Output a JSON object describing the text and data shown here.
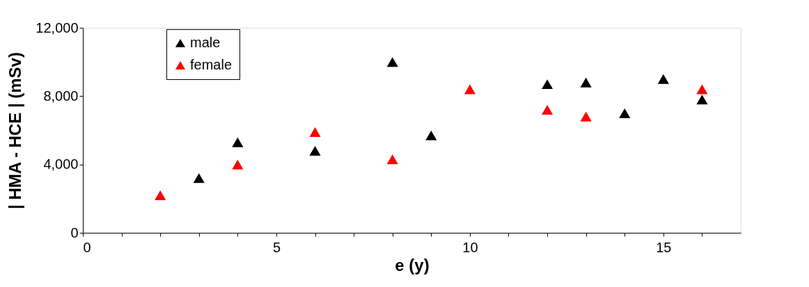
{
  "chart_data": {
    "type": "scatter",
    "xlabel": "e (y)",
    "ylabel": "| HMA - HCE |   (mSv)",
    "xlim": [
      0,
      17
    ],
    "xticks": [
      0,
      {
        "value": 1,
        "label": null
      },
      {
        "value": 2,
        "label": null
      },
      {
        "value": 3,
        "label": null
      },
      {
        "value": 4,
        "label": null
      },
      5,
      {
        "value": 6,
        "label": null
      },
      {
        "value": 7,
        "label": null
      },
      {
        "value": 8,
        "label": null
      },
      {
        "value": 9,
        "label": null
      },
      10,
      {
        "value": 11,
        "label": null
      },
      {
        "value": 12,
        "label": null
      },
      {
        "value": 13,
        "label": null
      },
      {
        "value": 14,
        "label": null
      },
      15,
      {
        "value": 16,
        "label": null
      }
    ],
    "ylim": [
      0,
      12000
    ],
    "yticks": [
      0,
      {
        "value": 4000,
        "label": "4,000"
      },
      {
        "value": 8000,
        "label": "8,000"
      },
      {
        "value": 12000,
        "label": "12,000"
      }
    ],
    "marker": "triangle",
    "grid": false,
    "legend": "top left",
    "series": [
      {
        "name": "male",
        "color": "#000000",
        "x": [
          3,
          4,
          6,
          8,
          9,
          12,
          13,
          14,
          15,
          16
        ],
        "values": [
          3200,
          5300,
          4800,
          10000,
          5700,
          8700,
          8800,
          7000,
          9000,
          7800
        ]
      },
      {
        "name": "female",
        "color": "#ff0000",
        "x": [
          2,
          4,
          6,
          8,
          10,
          12,
          13,
          16
        ],
        "values": [
          2200,
          4000,
          5900,
          4300,
          8400,
          7200,
          6800,
          8400
        ]
      }
    ]
  }
}
